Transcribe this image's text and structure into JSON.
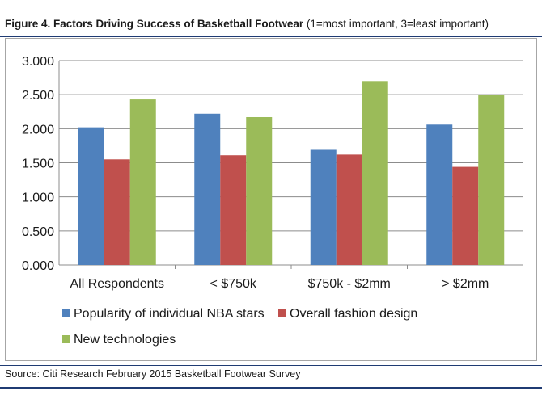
{
  "figure": {
    "title_bold": "Figure 4. Factors Driving Success of Basketball Footwear",
    "title_normal": "(1=most important, 3=least important)"
  },
  "source": "Source: Citi Research February 2015 Basketball Footwear Survey",
  "chart_data": {
    "type": "bar",
    "title": "",
    "xlabel": "",
    "ylabel": "",
    "ylim": [
      0,
      3
    ],
    "ytick_step": 0.5,
    "ytick_labels": [
      "0.000",
      "0.500",
      "1.000",
      "1.500",
      "2.000",
      "2.500",
      "3.000"
    ],
    "grid": true,
    "legend_position": "bottom",
    "categories": [
      "All Respondents",
      "< $750k",
      "$750k - $2mm",
      "> $2mm"
    ],
    "series": [
      {
        "name": "Popularity of individual NBA stars",
        "color": "#4f81bd",
        "values": [
          2.02,
          2.22,
          1.69,
          2.06
        ]
      },
      {
        "name": "Overall fashion design",
        "color": "#c0504d",
        "values": [
          1.55,
          1.61,
          1.62,
          1.44
        ]
      },
      {
        "name": "New technologies",
        "color": "#9bbb59",
        "values": [
          2.43,
          2.17,
          2.7,
          2.5
        ]
      }
    ]
  }
}
